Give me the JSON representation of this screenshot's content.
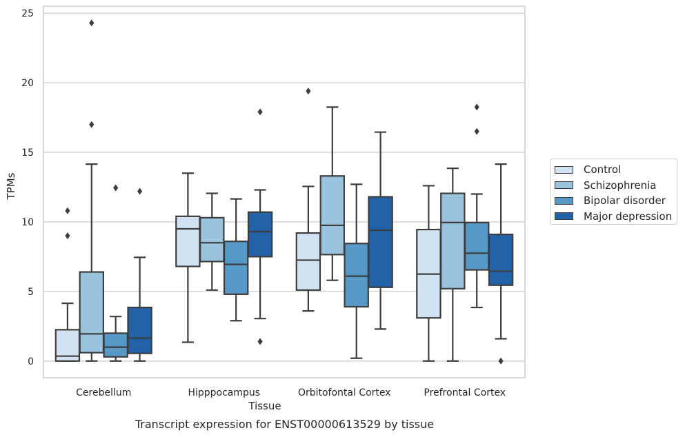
{
  "chart_data": {
    "type": "box",
    "xlabel": "Tissue",
    "ylabel": "TPMs",
    "ylim": [
      -1.2,
      25.5
    ],
    "yticks": [
      0,
      5,
      10,
      15,
      20,
      25
    ],
    "grid": "horizontal",
    "legend_position": "right",
    "categories": [
      "Cerebellum",
      "Hipppocampus",
      "Orbitofontal Cortex",
      "Prefrontal Cortex"
    ],
    "series": [
      {
        "name": "Control",
        "color": "#d1e2f2",
        "boxes": [
          {
            "whisker_low": 0,
            "q1": 0,
            "median": 0.35,
            "q3": 2.25,
            "whisker_high": 4.15,
            "outliers": [
              9.0,
              10.8
            ]
          },
          {
            "whisker_low": 1.35,
            "q1": 6.8,
            "median": 9.5,
            "q3": 10.4,
            "whisker_high": 13.5,
            "outliers": []
          },
          {
            "whisker_low": 3.6,
            "q1": 5.1,
            "median": 7.25,
            "q3": 9.2,
            "whisker_high": 12.55,
            "outliers": [
              19.4
            ]
          },
          {
            "whisker_low": 0,
            "q1": 3.1,
            "median": 6.25,
            "q3": 9.45,
            "whisker_high": 12.6,
            "outliers": []
          }
        ]
      },
      {
        "name": "Schizophrenia",
        "color": "#9ac3dd",
        "boxes": [
          {
            "whisker_low": 0,
            "q1": 0.6,
            "median": 1.95,
            "q3": 6.4,
            "whisker_high": 14.15,
            "outliers": [
              17.0,
              24.3
            ]
          },
          {
            "whisker_low": 5.1,
            "q1": 7.15,
            "median": 8.5,
            "q3": 10.3,
            "whisker_high": 12.05,
            "outliers": []
          },
          {
            "whisker_low": 5.8,
            "q1": 7.65,
            "median": 9.75,
            "q3": 13.3,
            "whisker_high": 18.25,
            "outliers": []
          },
          {
            "whisker_low": 0,
            "q1": 5.2,
            "median": 9.95,
            "q3": 12.05,
            "whisker_high": 13.85,
            "outliers": []
          }
        ]
      },
      {
        "name": "Bipolar disorder",
        "color": "#5799c6",
        "boxes": [
          {
            "whisker_low": 0,
            "q1": 0.3,
            "median": 1.0,
            "q3": 2.0,
            "whisker_high": 3.2,
            "outliers": [
              12.45
            ]
          },
          {
            "whisker_low": 2.9,
            "q1": 4.8,
            "median": 6.95,
            "q3": 8.6,
            "whisker_high": 11.65,
            "outliers": []
          },
          {
            "whisker_low": 0.2,
            "q1": 3.9,
            "median": 6.1,
            "q3": 8.45,
            "whisker_high": 12.7,
            "outliers": []
          },
          {
            "whisker_low": 3.85,
            "q1": 6.55,
            "median": 7.75,
            "q3": 9.95,
            "whisker_high": 12.0,
            "outliers": [
              16.5,
              18.25
            ]
          }
        ]
      },
      {
        "name": "Major depression",
        "color": "#2262a8",
        "boxes": [
          {
            "whisker_low": 0,
            "q1": 0.55,
            "median": 1.65,
            "q3": 3.85,
            "whisker_high": 7.45,
            "outliers": [
              12.2
            ]
          },
          {
            "whisker_low": 3.05,
            "q1": 7.5,
            "median": 9.3,
            "q3": 10.7,
            "whisker_high": 12.3,
            "outliers": [
              1.4,
              17.9
            ]
          },
          {
            "whisker_low": 2.3,
            "q1": 5.3,
            "median": 9.4,
            "q3": 11.8,
            "whisker_high": 16.45,
            "outliers": []
          },
          {
            "whisker_low": 1.6,
            "q1": 5.45,
            "median": 6.45,
            "q3": 9.1,
            "whisker_high": 14.15,
            "outliers": [
              0
            ]
          }
        ]
      }
    ]
  },
  "caption": "Transcript expression for ENST00000613529 by tissue"
}
